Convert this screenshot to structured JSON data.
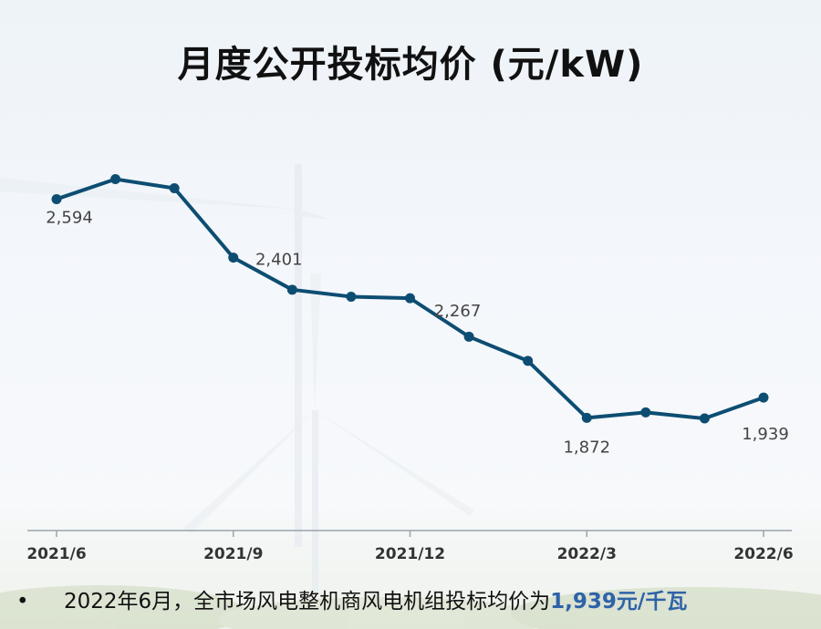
{
  "title": "月度公开投标均价 (元/kW)",
  "chart_data": {
    "type": "line",
    "title": "月度公开投标均价 (元/kW)",
    "x": [
      "2021/6",
      "2021/7",
      "2021/8",
      "2021/9",
      "2021/10",
      "2021/11",
      "2021/12",
      "2022/1",
      "2022/2",
      "2022/3",
      "2022/4",
      "2022/5",
      "2022/6"
    ],
    "tick_labels": [
      "2021/6",
      "2021/9",
      "2021/12",
      "2022/3",
      "2022/6"
    ],
    "series": [
      {
        "values": [
          2594,
          2660,
          2630,
          2401,
          2295,
          2272,
          2267,
          2140,
          2060,
          1872,
          1890,
          1870,
          1939
        ]
      }
    ],
    "data_labels": [
      {
        "index": 0,
        "text": "2,594"
      },
      {
        "index": 3,
        "text": "2,401"
      },
      {
        "index": 6,
        "text": "2,267"
      },
      {
        "index": 9,
        "text": "1,872"
      },
      {
        "index": 12,
        "text": "1,939"
      }
    ],
    "ylim": [
      1500,
      2800
    ],
    "grid": false,
    "line_color": "#0d4d72"
  },
  "footnote": {
    "bullet": "•",
    "text": "2022年6月，全市场风电整机商风电机组投标均价为",
    "highlight": "1,939元/千瓦"
  }
}
